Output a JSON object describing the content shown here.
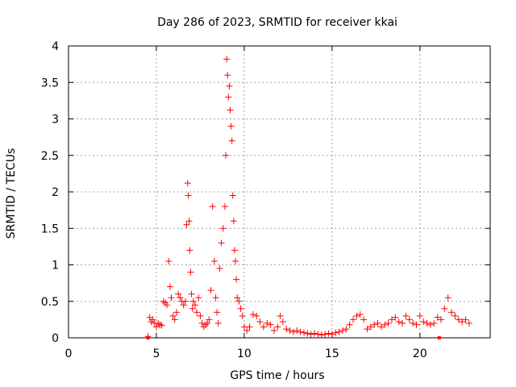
{
  "chart_data": {
    "type": "scatter",
    "title": "Day 286 of 2023, SRMTID for receiver kkai",
    "xlabel": "GPS time / hours",
    "ylabel": "SRMTID / TECUs",
    "xlim": [
      0,
      24
    ],
    "ylim": [
      0,
      4
    ],
    "xticks": [
      0,
      5,
      10,
      15,
      20
    ],
    "yticks": [
      0,
      0.5,
      1,
      1.5,
      2,
      2.5,
      3,
      3.5,
      4
    ],
    "grid": true,
    "marker": "+",
    "color": "#ff0000",
    "series": [
      {
        "name": "kkai",
        "x": [
          4.52,
          4.62,
          4.7,
          4.8,
          4.9,
          5.0,
          5.1,
          5.2,
          5.3,
          5.4,
          5.5,
          5.6,
          5.7,
          5.78,
          5.85,
          5.95,
          6.05,
          6.15,
          6.25,
          6.35,
          6.45,
          6.55,
          6.65,
          6.72,
          6.78,
          6.82,
          6.86,
          6.9,
          6.95,
          7.0,
          7.05,
          7.1,
          7.2,
          7.3,
          7.4,
          7.5,
          7.6,
          7.7,
          7.8,
          7.9,
          8.0,
          8.1,
          8.2,
          8.3,
          8.38,
          8.45,
          8.52,
          8.6,
          8.7,
          8.8,
          8.9,
          8.95,
          9.0,
          9.05,
          9.1,
          9.15,
          9.2,
          9.25,
          9.3,
          9.35,
          9.4,
          9.45,
          9.5,
          9.55,
          9.6,
          9.7,
          9.8,
          9.9,
          10.0,
          10.15,
          10.3,
          10.5,
          10.7,
          10.9,
          11.1,
          11.3,
          11.5,
          11.7,
          11.9,
          12.05,
          12.2,
          12.4,
          12.6,
          12.8,
          13.0,
          13.2,
          13.4,
          13.6,
          13.8,
          14.0,
          14.2,
          14.4,
          14.6,
          14.8,
          15.0,
          15.2,
          15.4,
          15.6,
          15.8,
          16.0,
          16.2,
          16.4,
          16.6,
          16.8,
          17.0,
          17.2,
          17.4,
          17.6,
          17.8,
          18.0,
          18.2,
          18.4,
          18.6,
          18.8,
          19.0,
          19.2,
          19.4,
          19.6,
          19.8,
          20.0,
          20.2,
          20.4,
          20.6,
          20.8,
          21.0,
          21.2,
          21.4,
          21.6,
          21.8,
          22.0,
          22.2,
          22.4,
          22.6,
          22.8
        ],
        "y": [
          0.02,
          0.28,
          0.22,
          0.25,
          0.2,
          0.15,
          0.2,
          0.18,
          0.17,
          0.5,
          0.48,
          0.45,
          1.05,
          0.7,
          0.55,
          0.3,
          0.25,
          0.35,
          0.6,
          0.55,
          0.5,
          0.45,
          0.5,
          1.55,
          2.12,
          1.95,
          1.6,
          1.2,
          0.9,
          0.6,
          0.4,
          0.5,
          0.45,
          0.35,
          0.55,
          0.3,
          0.2,
          0.15,
          0.18,
          0.2,
          0.25,
          0.65,
          1.8,
          1.05,
          0.55,
          0.35,
          0.2,
          0.95,
          1.3,
          1.5,
          1.8,
          2.5,
          3.82,
          3.6,
          3.3,
          3.45,
          3.12,
          2.9,
          2.7,
          1.95,
          1.6,
          1.2,
          1.05,
          0.8,
          0.55,
          0.5,
          0.4,
          0.3,
          0.15,
          0.1,
          0.15,
          0.32,
          0.3,
          0.22,
          0.15,
          0.2,
          0.18,
          0.1,
          0.15,
          0.3,
          0.22,
          0.12,
          0.1,
          0.08,
          0.1,
          0.08,
          0.07,
          0.06,
          0.05,
          0.06,
          0.05,
          0.04,
          0.05,
          0.06,
          0.05,
          0.07,
          0.08,
          0.1,
          0.12,
          0.18,
          0.25,
          0.3,
          0.32,
          0.25,
          0.12,
          0.15,
          0.18,
          0.2,
          0.15,
          0.18,
          0.2,
          0.25,
          0.28,
          0.22,
          0.2,
          0.3,
          0.25,
          0.2,
          0.18,
          0.3,
          0.22,
          0.2,
          0.18,
          0.2,
          0.28,
          0.25,
          0.4,
          0.55,
          0.35,
          0.3,
          0.25,
          0.22,
          0.25,
          0.2
        ]
      }
    ],
    "markers_square": [
      {
        "x": 4.52,
        "y": 0.0
      },
      {
        "x": 21.1,
        "y": 0.0
      }
    ]
  }
}
